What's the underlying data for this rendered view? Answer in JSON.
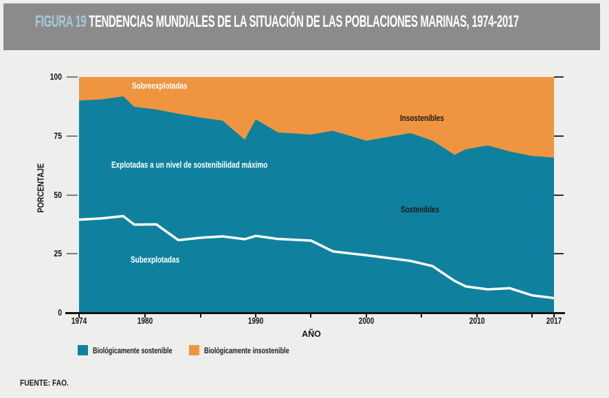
{
  "header": {
    "figure_label": "FIGURA 19",
    "title": "TENDENCIAS MUNDIALES DE LA SITUACIÓN DE LAS POBLACIONES MARINAS, 1974-2017"
  },
  "source": "FUENTE: FAO.",
  "colors": {
    "sustainable_teal": "#0f819e",
    "unsustainable_orange": "#f0953f",
    "divider_line_white": "#ffffff",
    "titlebar_gray": "#8b8b8b",
    "figure_label_blue": "#a5cbda",
    "background": "#eeeeec",
    "axis_black": "#141414",
    "tick_gray": "#7c7c7c"
  },
  "legend": {
    "items": [
      {
        "label": "Biológicamente sostenible",
        "color": "#0f819e"
      },
      {
        "label": "Biológicamente insostenible",
        "color": "#f0953f"
      }
    ]
  },
  "chart_data": {
    "type": "area",
    "stacked": true,
    "title": "TENDENCIAS MUNDIALES DE LA SITUACIÓN DE LAS POBLACIONES MARINAS, 1974-2017",
    "xlabel": "AÑO",
    "ylabel": "PORCENTAJE",
    "xlim": [
      1974,
      2017
    ],
    "ylim": [
      0,
      100
    ],
    "grid": false,
    "legend_position": "bottom",
    "y_ticks": [
      0,
      25,
      50,
      75,
      100
    ],
    "x_tick_labels": [
      1974,
      1980,
      1990,
      2000,
      2010,
      2017
    ],
    "x_ticks_all": [
      1974,
      1980,
      1985,
      1990,
      1995,
      2000,
      2005,
      2010,
      2015,
      2017
    ],
    "x": [
      1974,
      1976,
      1978,
      1979,
      1981,
      1983,
      1985,
      1987,
      1989,
      1990,
      1992,
      1995,
      1997,
      2000,
      2004,
      2006,
      2008,
      2009,
      2011,
      2013,
      2015,
      2017
    ],
    "series": [
      {
        "name": "Biológicamente sostenible (total)",
        "color": "#0f819e",
        "values": [
          90,
          90.5,
          91.8,
          87.4,
          86.2,
          84.4,
          82.8,
          81.5,
          73.4,
          82,
          76.5,
          75.6,
          77.2,
          73,
          76.2,
          73,
          67,
          69.3,
          71,
          68.4,
          66.5,
          65.8
        ]
      },
      {
        "name": "Subexplotadas (frontera línea blanca)",
        "color": "#ffffff",
        "values": [
          39.5,
          40,
          41,
          37.4,
          37.5,
          30.8,
          31.8,
          32.4,
          31.2,
          32.6,
          31.3,
          30.6,
          26,
          24.4,
          22,
          19.8,
          13.5,
          11.2,
          9.9,
          10.4,
          7.4,
          6.2
        ]
      },
      {
        "name": "Biológicamente insostenible",
        "color": "#f0953f",
        "values": [
          10,
          9.5,
          8.2,
          12.6,
          13.8,
          15.6,
          17.2,
          18.5,
          26.6,
          18,
          23.5,
          24.4,
          22.8,
          27,
          23.8,
          27,
          33,
          30.7,
          29,
          31.6,
          33.5,
          34.2
        ]
      }
    ],
    "annotations": [
      {
        "text": "Sobreexplotadas",
        "color": "#ffffff"
      },
      {
        "text": "Insostenibles",
        "color": "#1a1a1a"
      },
      {
        "text": "Explotadas a un nivel de sostenibilidad máximo",
        "color": "#ffffff"
      },
      {
        "text": "Sostenibles",
        "color": "#1a1a1a"
      },
      {
        "text": "Subexplotadas",
        "color": "#ffffff"
      }
    ]
  }
}
